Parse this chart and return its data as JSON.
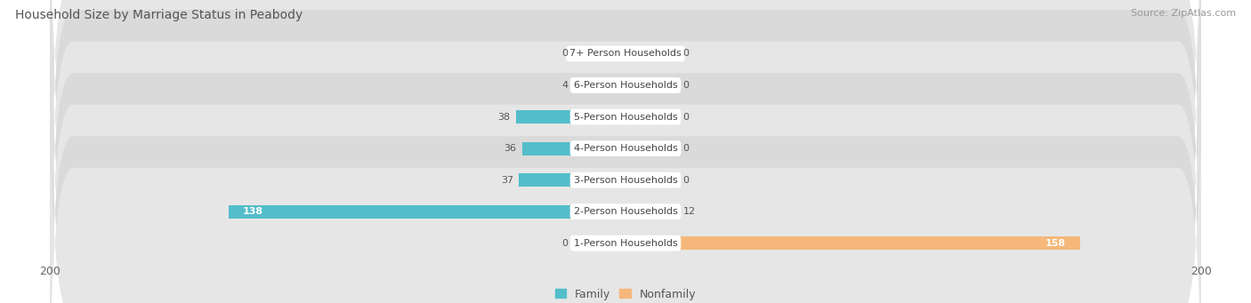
{
  "title": "Household Size by Marriage Status in Peabody",
  "source": "Source: ZipAtlas.com",
  "categories": [
    "7+ Person Households",
    "6-Person Households",
    "5-Person Households",
    "4-Person Households",
    "3-Person Households",
    "2-Person Households",
    "1-Person Households"
  ],
  "family_values": [
    0,
    4,
    38,
    36,
    37,
    138,
    0
  ],
  "nonfamily_values": [
    0,
    0,
    0,
    0,
    0,
    12,
    158
  ],
  "family_color": "#52bec9",
  "nonfamily_color": "#f5b87a",
  "nonfamily_stub_color": "#f2cba8",
  "family_stub_color": "#8fd4db",
  "xlim_left": -200,
  "xlim_right": 200,
  "bg_color": "#f0f0f0",
  "row_bg_even": "#e6e6e6",
  "row_bg_odd": "#dadada",
  "title_fontsize": 10,
  "source_fontsize": 8,
  "tick_fontsize": 9,
  "label_fontsize": 8,
  "value_fontsize": 8,
  "legend_fontsize": 9,
  "stub_size": 18
}
